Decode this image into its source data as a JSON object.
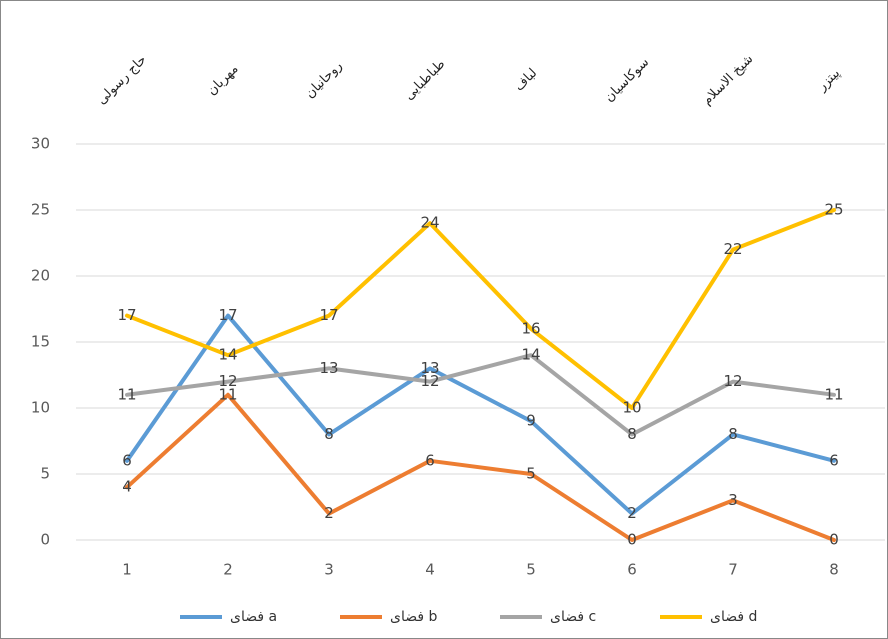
{
  "chart_data": {
    "type": "line",
    "top_labels": [
      "حاج رسولی",
      "مهربان",
      "روحانیان",
      "طباطبایی",
      "لباف",
      "سوکاسیان",
      "شیخ الاسلام",
      "پیتزر"
    ],
    "categories": [
      "1",
      "2",
      "3",
      "4",
      "5",
      "6",
      "7",
      "8"
    ],
    "series": [
      {
        "name": "فضای a",
        "color": "#5b9bd5",
        "values": [
          6,
          17,
          8,
          13,
          9,
          2,
          8,
          6
        ]
      },
      {
        "name": "فضای b",
        "color": "#ed7d31",
        "values": [
          4,
          11,
          2,
          6,
          5,
          0,
          3,
          0
        ]
      },
      {
        "name": "فضای c",
        "color": "#a5a5a5",
        "values": [
          11,
          12,
          13,
          12,
          14,
          8,
          12,
          11
        ]
      },
      {
        "name": "فضای d",
        "color": "#ffc000",
        "values": [
          17,
          14,
          17,
          24,
          16,
          10,
          22,
          25
        ]
      }
    ],
    "ylim": [
      0,
      30
    ],
    "yticks": [
      0,
      5,
      10,
      15,
      20,
      25,
      30
    ],
    "grid": true,
    "legend": "bottom"
  }
}
